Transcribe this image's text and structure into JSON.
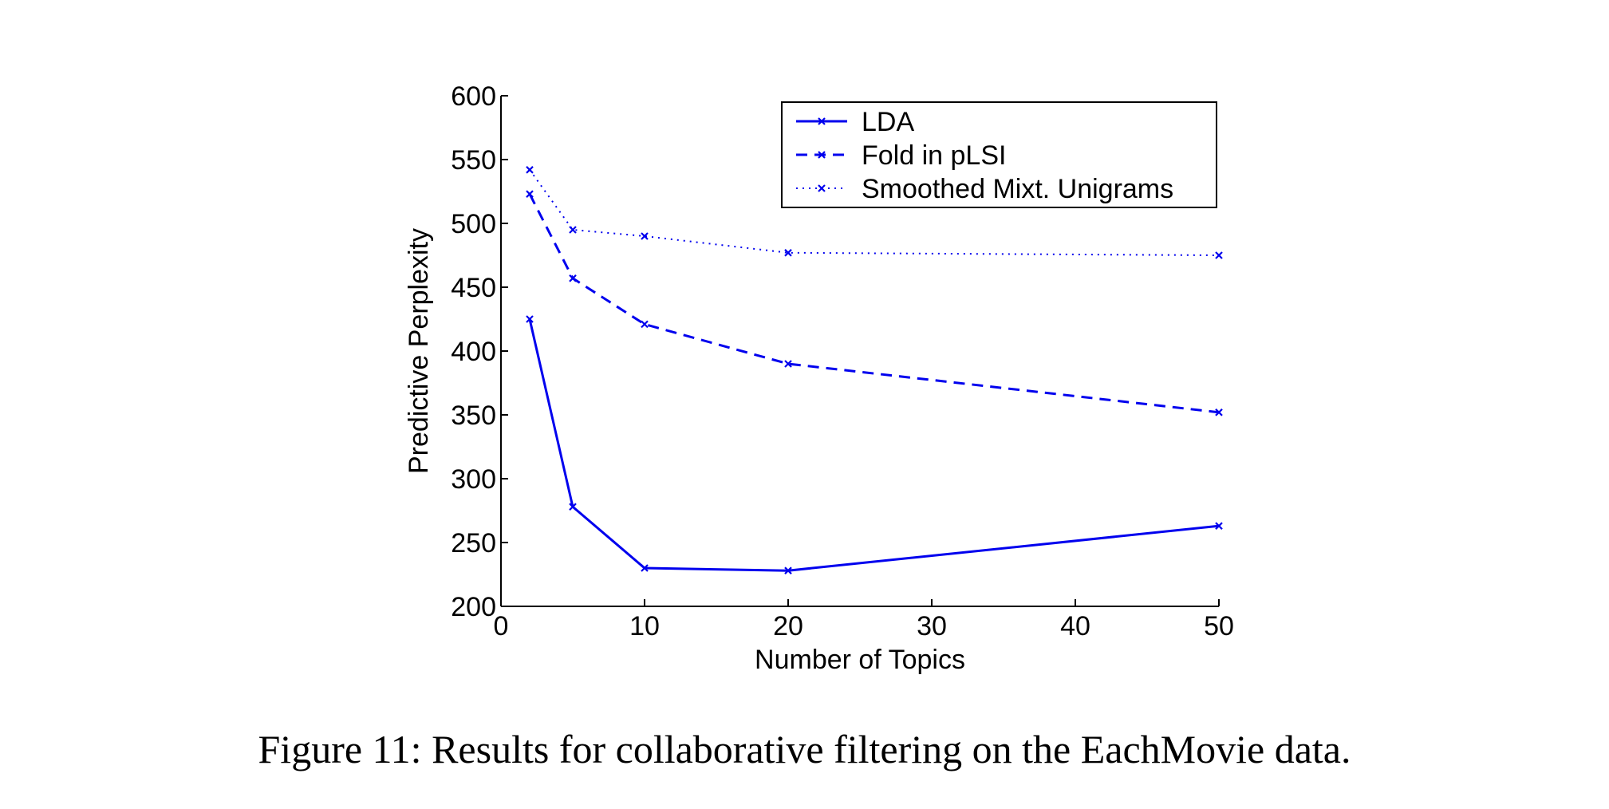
{
  "caption": "Figure 11: Results for collaborative filtering on the EachMovie data.",
  "chart_data": {
    "type": "line",
    "xlabel": "Number of Topics",
    "ylabel": "Predictive Perplexity",
    "xlim": [
      0,
      50
    ],
    "ylim": [
      200,
      600
    ],
    "xticks": [
      0,
      10,
      20,
      30,
      40,
      50
    ],
    "yticks": [
      200,
      250,
      300,
      350,
      400,
      450,
      500,
      550,
      600
    ],
    "grid": false,
    "legend_position": "top-right",
    "color": "#0000ee",
    "series": [
      {
        "name": "LDA",
        "style": "solid",
        "x": [
          2,
          5,
          10,
          20,
          50
        ],
        "y": [
          425,
          278,
          230,
          228,
          263
        ]
      },
      {
        "name": "Fold in pLSI",
        "style": "dashed",
        "x": [
          2,
          5,
          10,
          20,
          50
        ],
        "y": [
          523,
          457,
          421,
          390,
          352
        ]
      },
      {
        "name": "Smoothed Mixt. Unigrams",
        "style": "dotted",
        "x": [
          2,
          5,
          10,
          20,
          50
        ],
        "y": [
          542,
          495,
          490,
          477,
          475
        ]
      }
    ]
  }
}
